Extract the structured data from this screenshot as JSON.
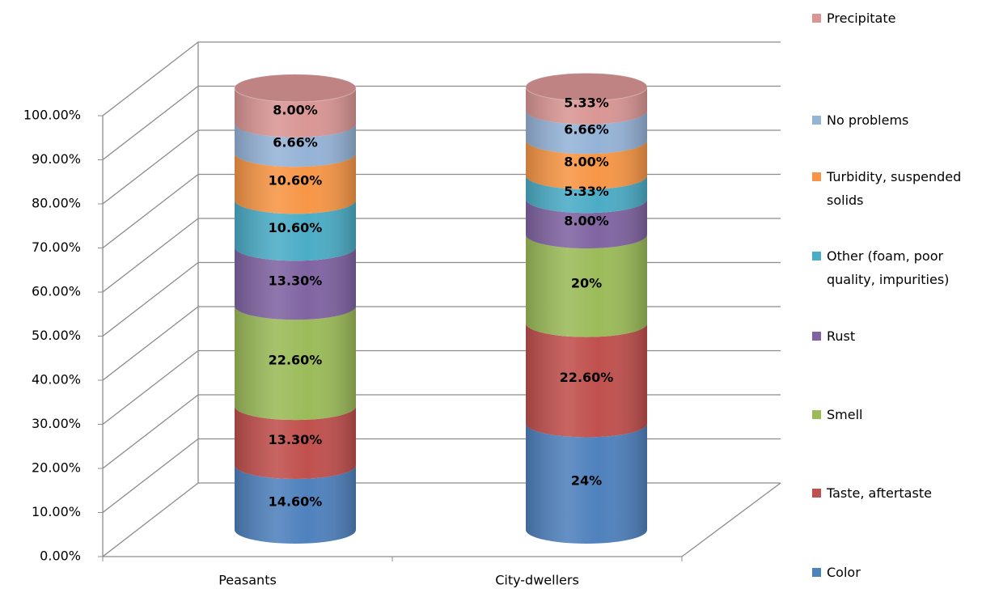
{
  "chart_data": {
    "type": "stacked-cylinder-3d",
    "categories": [
      "Peasants",
      "City-dwellers"
    ],
    "series": [
      {
        "name": "Color",
        "color": "#4f81bd",
        "values": [
          14.6,
          24
        ],
        "value_labels": [
          "14.60%",
          "24%"
        ]
      },
      {
        "name": "Taste, aftertaste",
        "color": "#c0504d",
        "values": [
          13.3,
          22.6
        ],
        "value_labels": [
          "13.30%",
          "22.60%"
        ]
      },
      {
        "name": "Smell",
        "color": "#9bbb59",
        "values": [
          22.6,
          20
        ],
        "value_labels": [
          "22.60%",
          "20%"
        ]
      },
      {
        "name": "Rust",
        "color": "#8064a2",
        "values": [
          13.3,
          8
        ],
        "value_labels": [
          "13.30%",
          "8.00%"
        ]
      },
      {
        "name": "Other (foam, poor quality, impurities)",
        "color": "#4bacc6",
        "values": [
          10.6,
          5.33
        ],
        "value_labels": [
          "10.60%",
          "5.33%"
        ]
      },
      {
        "name": "Turbidity, suspended solids",
        "color": "#f79646",
        "values": [
          10.6,
          8
        ],
        "value_labels": [
          "10.60%",
          "8.00%"
        ]
      },
      {
        "name": "No problems",
        "color": "#95b3d7",
        "values": [
          6.66,
          6.66
        ],
        "value_labels": [
          "6.66%",
          "6.66%"
        ]
      },
      {
        "name": "Precipitate",
        "color": "#d99694",
        "values": [
          8,
          5.33
        ],
        "value_labels": [
          "8.00%",
          "5.33%"
        ]
      }
    ],
    "ylim": [
      0,
      100
    ],
    "yticks": [
      {
        "value": 0,
        "label": "0.00%"
      },
      {
        "value": 10,
        "label": "10.00%"
      },
      {
        "value": 20,
        "label": "20.00%"
      },
      {
        "value": 30,
        "label": "30.00%"
      },
      {
        "value": 40,
        "label": "40.00%"
      },
      {
        "value": 50,
        "label": "50.00%"
      },
      {
        "value": 60,
        "label": "60.00%"
      },
      {
        "value": 70,
        "label": "70.00%"
      },
      {
        "value": 80,
        "label": "80.00%"
      },
      {
        "value": 90,
        "label": "90.00%"
      },
      {
        "value": 100,
        "label": "100.00%"
      }
    ],
    "grid": true,
    "legend": "right"
  }
}
